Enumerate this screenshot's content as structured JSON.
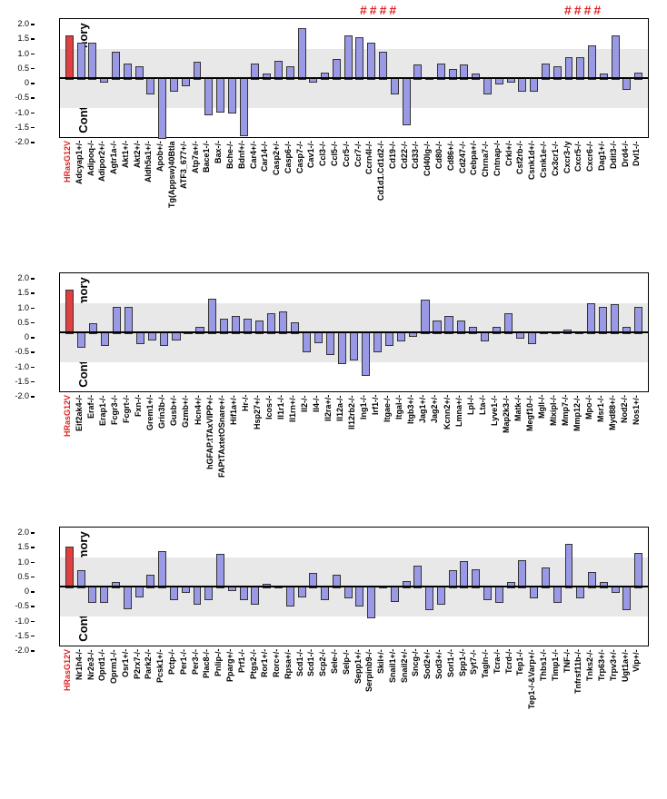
{
  "ylabel": "Contextual memory",
  "ylim": [
    -2.0,
    2.0
  ],
  "yticks": [
    -2.0,
    -1.5,
    -1.0,
    -0.5,
    0,
    0.5,
    1.0,
    1.5,
    2.0
  ],
  "gray_band": [
    -1.0,
    1.0
  ],
  "bar_color": "#9999e6",
  "highlight_color": "#e04040",
  "hash_color": "#e02020",
  "panels": [
    {
      "hash_positions": [
        [
          330,
          "####"
        ],
        [
          555,
          "####"
        ]
      ],
      "categories": [
        "HRasG12V",
        "Adcyap1+/-",
        "Adipoq-/-",
        "Adipor2+/-",
        "Agtr1a-/-",
        "Akt1+/-",
        "Akt2+/-",
        "Aldh5a1+/-",
        "Apob+/-",
        "Tg(Appsw)40Btla",
        "ATF3_677+/-",
        "Atp7a+/-",
        "Bace1-/-",
        "Bax-/-",
        "Bche-/-",
        "Bdnf+/-",
        "Car4+/-",
        "Car14-/-",
        "Casp2+/-",
        "Casp6-/-",
        "Casp7-/-",
        "Cav1-/-",
        "Ccl3-/-",
        "Ccl5-/-",
        "Ccr5-/-",
        "Ccr7-/-",
        "Ccrn4l-/-",
        "Cd1d1.Cd1d2-/-",
        "Cd19-/-",
        "Cd22-/-",
        "Cd33-/-",
        "Cd40lg-/-",
        "Cd80-/-",
        "Cd86+/-",
        "Cd247-/-",
        "Cebpa+/-",
        "Chrna7-/-",
        "Cntnap-/-",
        "Crkl+/-",
        "Csf2rb-/-",
        "Csnk1d+/-",
        "Csnk1e-/-",
        "Cx3cr1-/-",
        "Cxcr3-/y",
        "Cxcr5-/-",
        "Cxcr6-/-",
        "Dag1+/-",
        "Ddit3-/-",
        "Drd4-/-",
        "Dvl1-/-"
      ],
      "values": [
        1.45,
        1.2,
        1.2,
        -0.1,
        0.9,
        0.5,
        0.4,
        -0.5,
        -2.0,
        -0.4,
        -0.2,
        0.55,
        -1.2,
        -1.1,
        -1.15,
        -1.9,
        0.5,
        0.15,
        0.6,
        0.4,
        1.7,
        -0.1,
        0.2,
        0.65,
        1.45,
        1.4,
        1.2,
        0.9,
        -0.5,
        -1.55,
        0.45,
        0.0,
        0.5,
        0.3,
        0.45,
        0.15,
        -0.5,
        -0.15,
        -0.1,
        -0.4,
        -0.4,
        0.5,
        0.4,
        0.7,
        0.7,
        1.1,
        0.15,
        1.45,
        -0.35,
        0.2
      ],
      "highlight_idx": 0
    },
    {
      "hash_positions": [],
      "categories": [
        "HRasG12V",
        "Eif2ak4-/-",
        "Eraf-/-",
        "Erap1-/-",
        "Fcgr3-/-",
        "Fcgrt-/-",
        "Fxn-/-",
        "Grem1+/-",
        "Grin3b-/-",
        "Gusb+/-",
        "Gzmb+/-",
        "Hcn4+/-",
        "hGFAP.tTAxVIPP+/-",
        "FAPtTAxtetOSnare+/-",
        "Hif1a+/-",
        "Hr-/-",
        "Hsp27+/-",
        "Icos-/-",
        "Il1r1-/-",
        "Il1rn+/-",
        "Il2-/-",
        "Il4-/-",
        "Il2ra+/-",
        "Il12a-/-",
        "Il12rb2-/-",
        "Ing1-/-",
        "Irf1-/-",
        "Itgae-/-",
        "Itgal-/-",
        "Itgb3+/-",
        "Jag1+/-",
        "Jag2+/-",
        "Kcnn2+/-",
        "Lmna+/-",
        "Lpl-/-",
        "Lta-/-",
        "Lyve1-/-",
        "Map2k3-/-",
        "Matk-/-",
        "Megf10-/-",
        "Mgll-/-",
        "Mlxipl-/-",
        "Mmp7-/-",
        "Mmp12-/-",
        "Mpo-/-",
        "Msr1-/-",
        "Myd88+/-",
        "Nod2-/-",
        "Nos1+/-"
      ],
      "values": [
        1.45,
        -0.45,
        0.3,
        -0.4,
        0.85,
        0.85,
        -0.35,
        -0.2,
        -0.4,
        -0.2,
        0.0,
        0.2,
        1.15,
        0.45,
        0.55,
        0.45,
        0.4,
        0.65,
        0.7,
        0.35,
        -0.6,
        -0.3,
        -0.7,
        -1.0,
        -0.9,
        -1.4,
        -0.6,
        -0.4,
        -0.25,
        -0.1,
        1.1,
        0.4,
        0.55,
        0.4,
        0.2,
        -0.25,
        0.2,
        0.65,
        -0.15,
        -0.35,
        0.0,
        0.0,
        0.1,
        0.0,
        1.0,
        0.85,
        0.95,
        0.2,
        0.85
      ],
      "highlight_idx": 0
    },
    {
      "hash_positions": [],
      "categories": [
        "HRasG12V",
        "Nr1h4-/-",
        "Nr2e3-/-",
        "Oprd1-/-",
        "Oprm1-/-",
        "Osr1+/-",
        "P2rx7-/-",
        "Park2-/-",
        "Pcsk1+/-",
        "Pctp-/-",
        "Per1-/-",
        "Per3-/-",
        "Plac8-/-",
        "Pnlip-/-",
        "Pparg+/-",
        "Prf1-/-",
        "Ptgs2-/-",
        "Ror1+/-",
        "Rorc+/-",
        "Rpsa+/-",
        "Scd1-/-",
        "Scd1-/-",
        "Scp2-/-",
        "Sele-/-",
        "Selp-/-",
        "Sepp1+/-",
        "Serpinb9-/-",
        "Skil+/-",
        "Snail1+/-",
        "Snail2+/-",
        "Sncg-/-",
        "Sod2+/-",
        "Sod3+/-",
        "Sorl1-/-",
        "Spp1-/-",
        "Syt7-/-",
        "Tagln-/-",
        "Tcra-/-",
        "Tcrd-/-",
        "Tep1-/-",
        "Tep1-/-&Varp+/-",
        "Thbs1-/-",
        "Timp1-/-",
        "TNF-/-",
        "Tnfrsf11b-/-",
        "Tnks2-/-",
        "Trp63+/-",
        "Trpv3+/-",
        "Ugt1a+/-",
        "Vip+/-"
      ],
      "values": [
        1.35,
        0.55,
        -0.5,
        -0.5,
        0.15,
        -0.7,
        -0.3,
        0.4,
        1.2,
        -0.4,
        -0.15,
        -0.55,
        -0.4,
        1.1,
        -0.1,
        -0.4,
        -0.55,
        0.1,
        0.0,
        -0.6,
        -0.3,
        0.45,
        -0.4,
        0.4,
        -0.35,
        -0.6,
        -1.0,
        0.0,
        -0.45,
        0.2,
        0.7,
        -0.75,
        -0.55,
        0.55,
        0.85,
        0.6,
        -0.4,
        -0.5,
        0.15,
        0.9,
        -0.35,
        0.65,
        -0.5,
        1.45,
        -0.35,
        0.5,
        0.15,
        -0.15,
        -0.75,
        1.15
      ],
      "highlight_idx": 0
    }
  ]
}
